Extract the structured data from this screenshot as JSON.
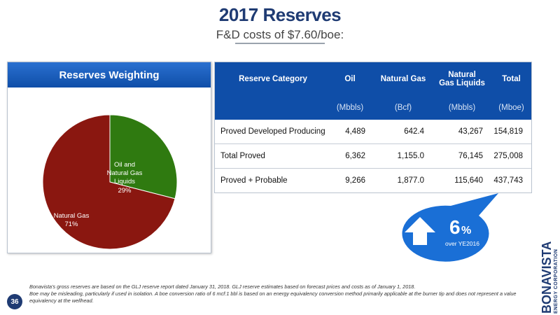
{
  "title": "2017 Reserves",
  "subtitle": "F&D costs of $7.60/boe:",
  "weighting_panel": {
    "title": "Reserves Weighting"
  },
  "chart_data": {
    "type": "pie",
    "slices": [
      {
        "label_lines": [
          "Oil and",
          "Natural Gas",
          "Liquids"
        ],
        "value_label": "29%",
        "value": 29,
        "color": "#2f7a10"
      },
      {
        "label_lines": [
          "Natural Gas"
        ],
        "value_label": "71%",
        "value": 71,
        "color": "#8a1710"
      }
    ]
  },
  "reserves_table": {
    "headers": [
      "Reserve Category",
      "Oil",
      "Natural Gas",
      "Natural Gas Liquids",
      "Total"
    ],
    "header_lines": {
      "ngl_line1": "Natural",
      "ngl_line2": "Gas Liquids"
    },
    "units": [
      "",
      "(Mbbls)",
      "(Bcf)",
      "(Mbbls)",
      "(Mboe)"
    ],
    "rows": [
      {
        "category": "Proved Developed Producing",
        "oil": "4,489",
        "gas": "642.4",
        "ngl": "43,267",
        "total": "154,819"
      },
      {
        "category": "Total Proved",
        "oil": "6,362",
        "gas": "1,155.0",
        "ngl": "76,145",
        "total": "275,008"
      },
      {
        "category": "Proved + Probable",
        "oil": "9,266",
        "gas": "1,877.0",
        "ngl": "115,640",
        "total": "437,743"
      }
    ]
  },
  "callout": {
    "value": "6",
    "unit": "%",
    "caption": "over YE2016",
    "icon": "up-arrow-icon",
    "color": "#1a6fd6"
  },
  "logo": {
    "name": "BONAVISTA",
    "subtitle": "ENERGY CORPORATION"
  },
  "footer": {
    "page_number": "36",
    "note_line1": "Bonavista's gross reserves are based on the GLJ reserve report dated January 31, 2018. GLJ reserve estimates based on forecast prices and costs as of January 1, 2018.",
    "note_line2": "Boe may be misleading, particularly if used in isolation. A boe conversion ratio of 6 mcf:1 bbl is based on an energy equivalency conversion method primarily applicable at the burner tip and does not represent a value equivalency at the wellhead."
  }
}
